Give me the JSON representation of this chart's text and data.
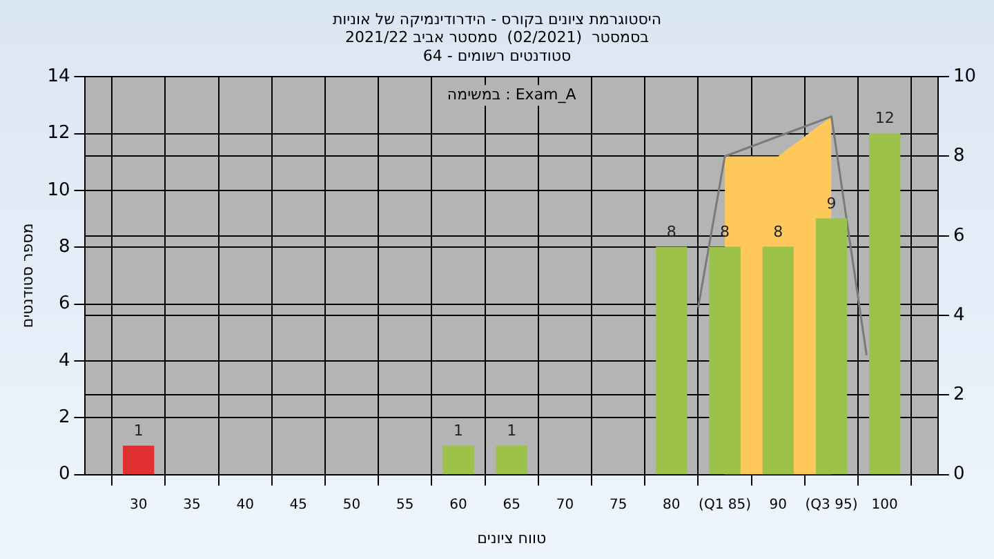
{
  "chart_data": {
    "type": "bar",
    "title": "היסטוגרמת ציונים בקורס - הידרודינמיקה של אוניות",
    "subtitle": "בסמסטר  (02/2021)  סמסטר אביב 2021/22\nסטודנטים רשומים - 64",
    "xlabel": "טווח ציונים",
    "ylabel": "מספר סטודנטים",
    "annotations": [
      "במשימה : Exam_A"
    ],
    "xlim": [
      25,
      105
    ],
    "xticks": [
      30,
      35,
      40,
      45,
      50,
      55,
      60,
      65,
      70,
      75,
      80,
      {
        "value": 85,
        "label": "(Q1 85)"
      },
      90,
      {
        "value": 95,
        "label": "(Q3 95)"
      },
      100
    ],
    "ylim": [
      0,
      14
    ],
    "yticks": [
      0,
      2,
      4,
      6,
      8,
      10,
      12,
      14
    ],
    "y2lim": [
      0,
      10
    ],
    "y2ticks": [
      0,
      2,
      4,
      6,
      8,
      10
    ],
    "grid": true,
    "legend": false,
    "series": [
      {
        "x": [
          30,
          60,
          65,
          80,
          85,
          90,
          95,
          100
        ],
        "values": [
          1,
          1,
          1,
          8,
          8,
          8,
          9,
          12
        ],
        "colors": [
          "#e03030",
          "#9cc24a",
          "#9cc24a",
          "#9cc24a",
          "#9cc24a",
          "#9cc24a",
          "#9cc24a",
          "#9cc24a"
        ],
        "value_labels": [
          "1",
          "1",
          "1",
          "8",
          "8",
          "8",
          "9",
          "12"
        ]
      },
      {
        "type": "area",
        "axis": "y2",
        "x": [
          85,
          90,
          95
        ],
        "values": [
          8,
          8,
          9
        ],
        "color": "#ffc85a"
      },
      {
        "type": "line",
        "axis": "y2",
        "x": [
          82.5,
          85,
          95,
          98.3
        ],
        "values": [
          4.2,
          8,
          9,
          3
        ],
        "color": "#7a7a7a"
      }
    ]
  }
}
